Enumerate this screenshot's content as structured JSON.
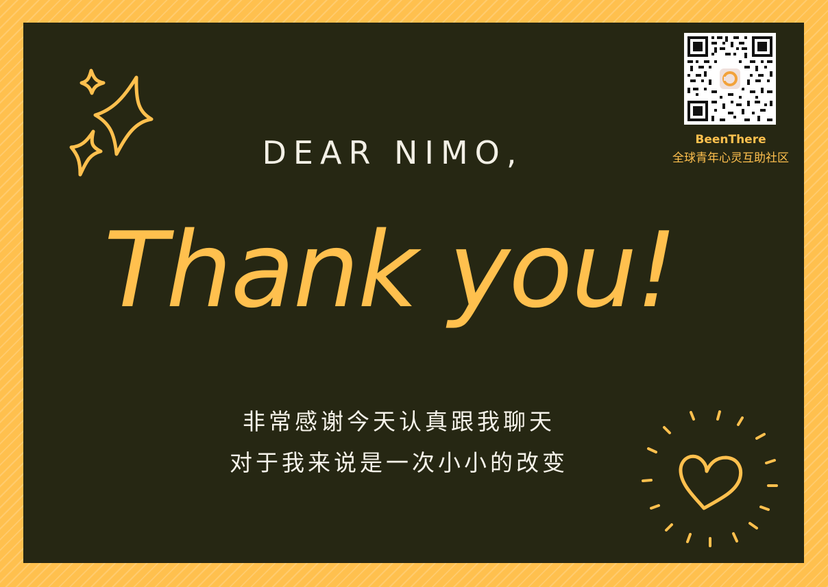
{
  "card": {
    "salutation": "DEAR NIMO,",
    "headline": "Thank you!",
    "message_line_1": "非常感谢今天认真跟我聊天",
    "message_line_2": "对于我来说是一次小小的改变"
  },
  "branding": {
    "name": "BeenThere",
    "tagline": "全球青年心灵互助社区",
    "qr_code_icon": "qr-code-icon"
  },
  "icons": [
    "sparkle-icon",
    "heart-icon"
  ],
  "colors": {
    "border": "#ffc04e",
    "board": "#262713",
    "accent": "#ffc04e",
    "text_light": "#f3f0e6"
  }
}
